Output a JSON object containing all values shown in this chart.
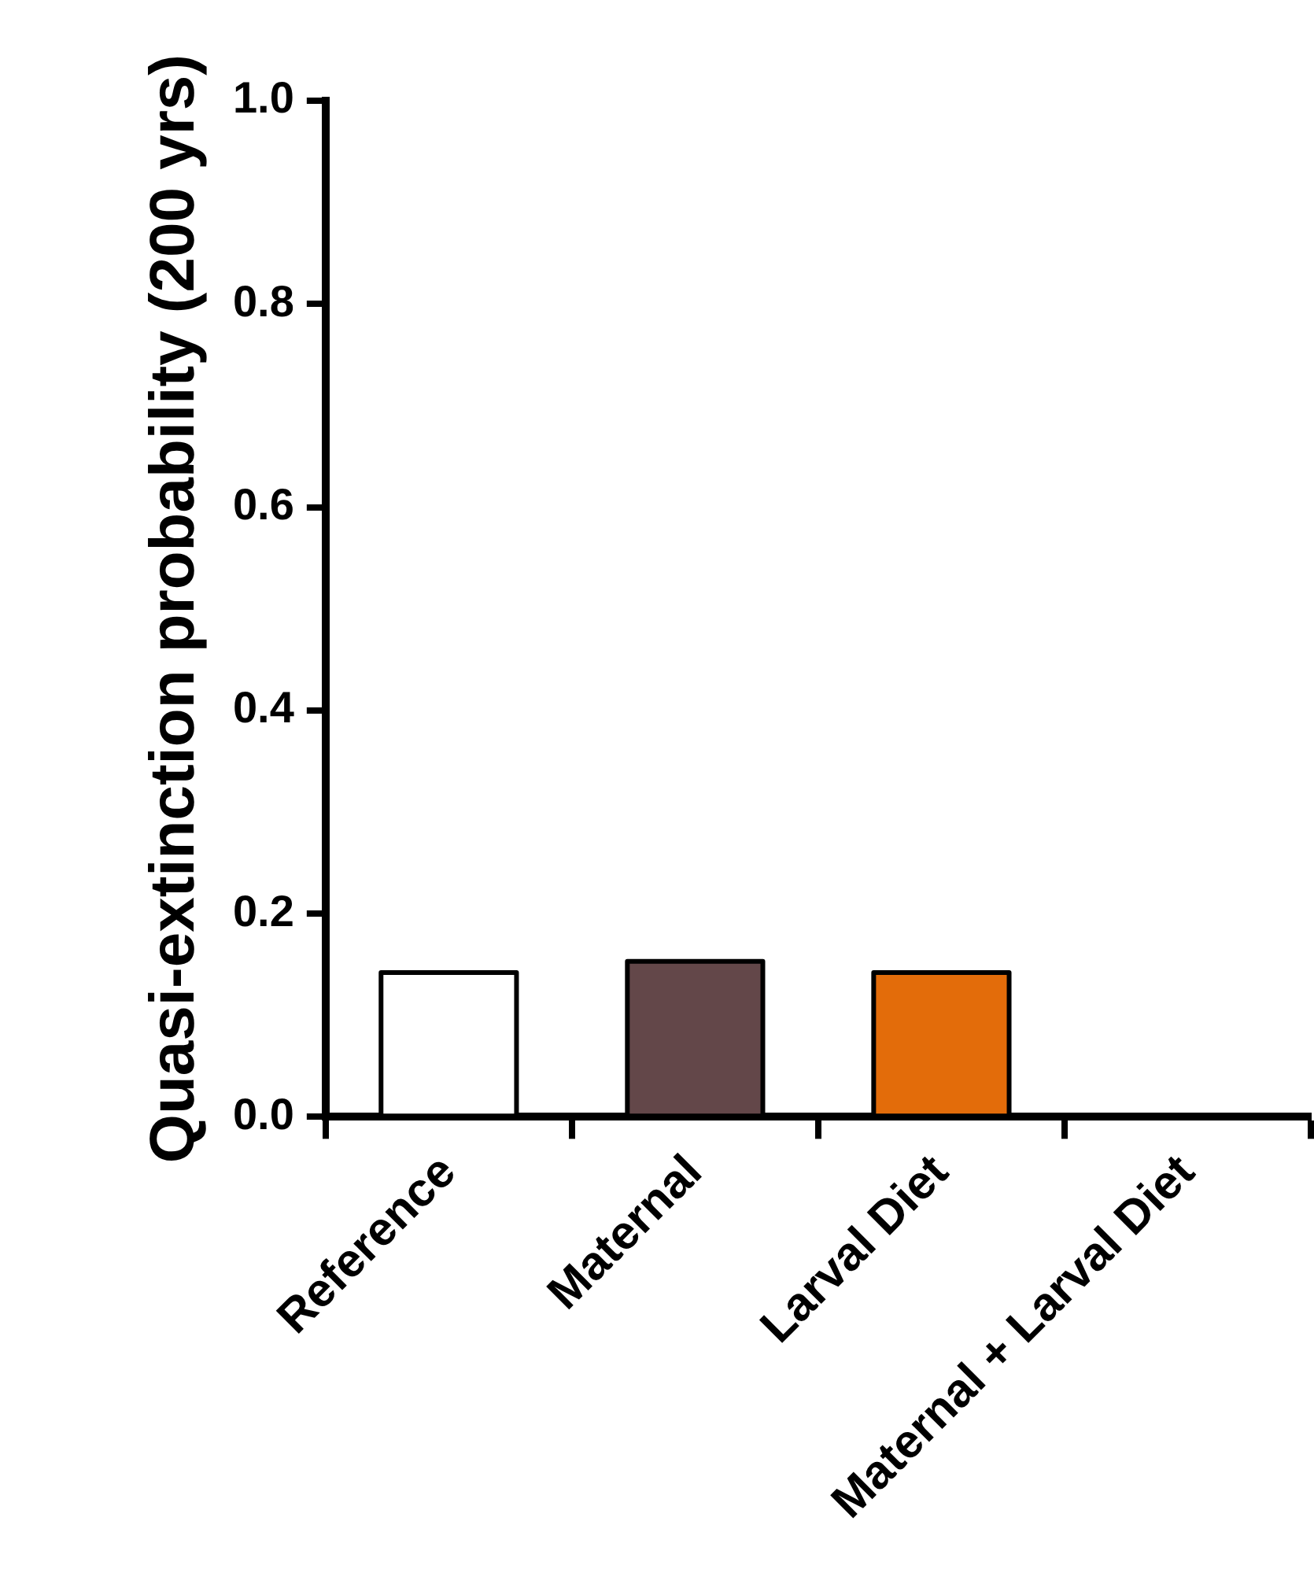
{
  "chart_data": {
    "type": "bar",
    "ylabel": "Quasi-extinction probability (200 yrs)",
    "categories": [
      "Reference",
      "Maternal",
      "Larval Diet",
      "Maternal + Larval Diet"
    ],
    "values": [
      0.142,
      0.153,
      0.142,
      0
    ],
    "colors": [
      "#ffffff",
      "#634749",
      "#e36c0a",
      "#ffffff"
    ],
    "ylim": [
      0,
      1
    ],
    "yticks": [
      {
        "value": 0,
        "label": "0.0"
      },
      {
        "value": 0.2,
        "label": "0.2"
      },
      {
        "value": 0.4,
        "label": "0.4"
      },
      {
        "value": 0.6,
        "label": "0.6"
      },
      {
        "value": 0.8,
        "label": "0.8"
      },
      {
        "value": 1,
        "label": "1.0"
      }
    ],
    "grid": false,
    "legend": false
  }
}
